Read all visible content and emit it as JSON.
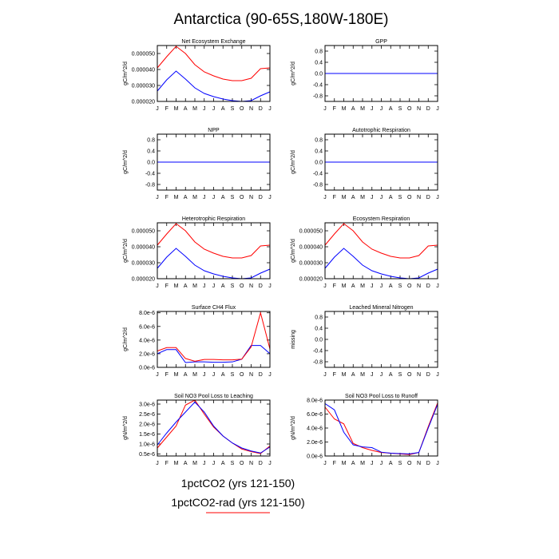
{
  "title": "Antarctica (90-65S,180W-180E)",
  "months": [
    "J",
    "F",
    "M",
    "A",
    "M",
    "J",
    "J",
    "A",
    "S",
    "O",
    "N",
    "D",
    "J"
  ],
  "legend": {
    "entries": [
      {
        "label": "1pctCO2 (yrs 121-150)",
        "color": "#0000ff"
      },
      {
        "label": "1pctCO2-rad (yrs 121-150)",
        "color": "#ff0000"
      }
    ]
  },
  "chart_data": [
    {
      "type": "line",
      "title": "Net Ecosystem Exchange",
      "ylabel": "gC/m^2/d",
      "ylim": [
        2e-05,
        5.5e-05
      ],
      "yticks": [
        2e-05,
        3e-05,
        4e-05,
        5e-05
      ],
      "ytick_labels": [
        "0.000020",
        "0.000030",
        "0.000040",
        "0.000050"
      ],
      "series": [
        {
          "color": "#0000ff",
          "values": [
            2.65e-05,
            3.35e-05,
            3.9e-05,
            3.4e-05,
            2.85e-05,
            2.5e-05,
            2.3e-05,
            2.15e-05,
            2.05e-05,
            2e-05,
            2.05e-05,
            2.35e-05,
            2.6e-05
          ]
        },
        {
          "color": "#ff0000",
          "values": [
            4.1e-05,
            4.8e-05,
            5.45e-05,
            5e-05,
            4.3e-05,
            3.85e-05,
            3.6e-05,
            3.4e-05,
            3.3e-05,
            3.3e-05,
            3.45e-05,
            4.05e-05,
            4.1e-05
          ]
        }
      ]
    },
    {
      "type": "line",
      "title": "GPP",
      "ylabel": "gC/m^2/d",
      "ylim": [
        -1,
        1
      ],
      "yticks": [
        -0.8,
        -0.4,
        0.0,
        0.4,
        0.8
      ],
      "ytick_labels": [
        "-0.8",
        "-0.4",
        "0.0",
        "0.4",
        "0.8"
      ],
      "series": [
        {
          "color": "#ff0000",
          "values": [
            0,
            0,
            0,
            0,
            0,
            0,
            0,
            0,
            0,
            0,
            0,
            0,
            0
          ]
        },
        {
          "color": "#0000ff",
          "values": [
            0,
            0,
            0,
            0,
            0,
            0,
            0,
            0,
            0,
            0,
            0,
            0,
            0
          ]
        }
      ]
    },
    {
      "type": "line",
      "title": "NPP",
      "ylabel": "gC/m^2/d",
      "ylim": [
        -1,
        1
      ],
      "yticks": [
        -0.8,
        -0.4,
        0.0,
        0.4,
        0.8
      ],
      "ytick_labels": [
        "-0.8",
        "-0.4",
        "0.0",
        "0.4",
        "0.8"
      ],
      "series": [
        {
          "color": "#ff0000",
          "values": [
            0,
            0,
            0,
            0,
            0,
            0,
            0,
            0,
            0,
            0,
            0,
            0,
            0
          ]
        },
        {
          "color": "#0000ff",
          "values": [
            0,
            0,
            0,
            0,
            0,
            0,
            0,
            0,
            0,
            0,
            0,
            0,
            0
          ]
        }
      ]
    },
    {
      "type": "line",
      "title": "Autotrophic Respiration",
      "ylabel": "gC/m^2/d",
      "ylim": [
        -1,
        1
      ],
      "yticks": [
        -0.8,
        -0.4,
        0.0,
        0.4,
        0.8
      ],
      "ytick_labels": [
        "-0.8",
        "-0.4",
        "0.0",
        "0.4",
        "0.8"
      ],
      "series": [
        {
          "color": "#ff0000",
          "values": [
            0,
            0,
            0,
            0,
            0,
            0,
            0,
            0,
            0,
            0,
            0,
            0,
            0
          ]
        },
        {
          "color": "#0000ff",
          "values": [
            0,
            0,
            0,
            0,
            0,
            0,
            0,
            0,
            0,
            0,
            0,
            0,
            0
          ]
        }
      ]
    },
    {
      "type": "line",
      "title": "Heterotrophic Respiration",
      "ylabel": "gC/m^2/d",
      "ylim": [
        2e-05,
        5.5e-05
      ],
      "yticks": [
        2e-05,
        3e-05,
        4e-05,
        5e-05
      ],
      "ytick_labels": [
        "0.000020",
        "0.000030",
        "0.000040",
        "0.000050"
      ],
      "series": [
        {
          "color": "#0000ff",
          "values": [
            2.65e-05,
            3.35e-05,
            3.9e-05,
            3.4e-05,
            2.85e-05,
            2.5e-05,
            2.3e-05,
            2.15e-05,
            2.05e-05,
            2e-05,
            2.05e-05,
            2.35e-05,
            2.6e-05
          ]
        },
        {
          "color": "#ff0000",
          "values": [
            4.1e-05,
            4.8e-05,
            5.45e-05,
            5e-05,
            4.3e-05,
            3.85e-05,
            3.6e-05,
            3.4e-05,
            3.3e-05,
            3.3e-05,
            3.45e-05,
            4.05e-05,
            4.1e-05
          ]
        }
      ]
    },
    {
      "type": "line",
      "title": "Ecosystem Respiration",
      "ylabel": "gC/m^2/d",
      "ylim": [
        2e-05,
        5.5e-05
      ],
      "yticks": [
        2e-05,
        3e-05,
        4e-05,
        5e-05
      ],
      "ytick_labels": [
        "0.000020",
        "0.000030",
        "0.000040",
        "0.000050"
      ],
      "series": [
        {
          "color": "#0000ff",
          "values": [
            2.65e-05,
            3.35e-05,
            3.9e-05,
            3.4e-05,
            2.85e-05,
            2.5e-05,
            2.3e-05,
            2.15e-05,
            2.05e-05,
            2e-05,
            2.05e-05,
            2.35e-05,
            2.6e-05
          ]
        },
        {
          "color": "#ff0000",
          "values": [
            4.1e-05,
            4.8e-05,
            5.45e-05,
            5e-05,
            4.3e-05,
            3.85e-05,
            3.6e-05,
            3.4e-05,
            3.3e-05,
            3.3e-05,
            3.45e-05,
            4.05e-05,
            4.1e-05
          ]
        }
      ]
    },
    {
      "type": "line",
      "title": "Surface CH4 Flux",
      "ylabel": "gC/m^2/d",
      "ylim": [
        0,
        8.2e-06
      ],
      "yticks": [
        0,
        2e-06,
        4e-06,
        6e-06,
        8e-06
      ],
      "ytick_labels": [
        "0.0e-6",
        "2.0e-6",
        "4.0e-6",
        "6.0e-6",
        "8.0e-6"
      ],
      "series": [
        {
          "color": "#0000ff",
          "values": [
            2e-06,
            2.6e-06,
            2.6e-06,
            7e-07,
            8e-07,
            8e-07,
            7.5e-07,
            7.5e-07,
            8e-07,
            1.2e-06,
            3.2e-06,
            3.2e-06,
            2e-06
          ]
        },
        {
          "color": "#ff0000",
          "values": [
            2.4e-06,
            2.9e-06,
            2.9e-06,
            1.3e-06,
            9e-07,
            1.15e-06,
            1.15e-06,
            1.1e-06,
            1.1e-06,
            1.2e-06,
            3e-06,
            8e-06,
            2.7e-06
          ]
        }
      ]
    },
    {
      "type": "line",
      "title": "Leached Mineral Nitrogen",
      "ylabel": "missing",
      "ylim": [
        -1,
        1
      ],
      "yticks": [
        -0.8,
        -0.4,
        0.0,
        0.4,
        0.8
      ],
      "ytick_labels": [
        "-0.8",
        "-0.4",
        "0.0",
        "0.4",
        "0.8"
      ],
      "series": []
    },
    {
      "type": "line",
      "title": "Soil NO3 Pool Loss to Leaching",
      "ylabel": "gN/m^2/d",
      "ylim": [
        4e-07,
        3.2e-06
      ],
      "yticks": [
        5e-07,
        1e-06,
        1.5e-06,
        2e-06,
        2.5e-06,
        3e-06
      ],
      "ytick_labels": [
        "0.5e-6",
        "1.0e-6",
        "1.5e-6",
        "2.0e-6",
        "2.5e-6",
        "3.0e-6"
      ],
      "series": [
        {
          "color": "#ff0000",
          "values": [
            8e-07,
            1.35e-06,
            1.9e-06,
            2.95e-06,
            3.2e-06,
            2.5e-06,
            1.85e-06,
            1.4e-06,
            1.05e-06,
            7.5e-07,
            6.2e-07,
            5.2e-07,
            9e-07
          ]
        },
        {
          "color": "#0000ff",
          "values": [
            9.5e-07,
            1.55e-06,
            2.1e-06,
            2.6e-06,
            3.1e-06,
            2.6e-06,
            1.9e-06,
            1.4e-06,
            1.05e-06,
            8e-07,
            6.5e-07,
            5.5e-07,
            8.5e-07
          ]
        }
      ]
    },
    {
      "type": "line",
      "title": "Soil NO3 Pool Loss to Runoff",
      "ylabel": "gN/m^2/d",
      "ylim": [
        0,
        8e-06
      ],
      "yticks": [
        0,
        2e-06,
        4e-06,
        6e-06,
        8e-06
      ],
      "ytick_labels": [
        "0.0e-6",
        "2.0e-6",
        "4.0e-6",
        "6.0e-6",
        "8.0e-6"
      ],
      "series": [
        {
          "color": "#ff0000",
          "values": [
            7e-06,
            5.3e-06,
            4.6e-06,
            1.8e-06,
            1.2e-06,
            8e-07,
            5e-07,
            4e-07,
            3e-07,
            2e-07,
            5e-07,
            4.2e-06,
            7.6e-06
          ]
        },
        {
          "color": "#0000ff",
          "values": [
            7.5e-06,
            6.6e-06,
            3.4e-06,
            1.6e-06,
            1.3e-06,
            1.2e-06,
            5.5e-07,
            4e-07,
            3.5e-07,
            3e-07,
            5e-07,
            4e-06,
            7.4e-06
          ]
        }
      ]
    }
  ]
}
